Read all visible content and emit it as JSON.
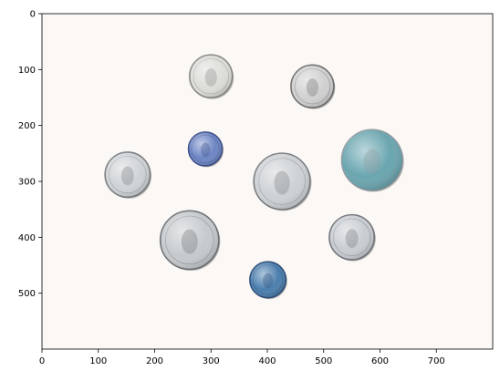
{
  "figure": {
    "axes": {
      "x": {
        "range": [
          0,
          800
        ],
        "ticks": [
          0,
          100,
          200,
          300,
          400,
          500,
          600,
          700
        ]
      },
      "y": {
        "range": [
          600,
          0
        ],
        "ticks": [
          0,
          100,
          200,
          300,
          400,
          500
        ]
      }
    },
    "background_color": "#fbf8f5",
    "subject": "coins",
    "coins": [
      {
        "name": "coin-silver-top",
        "x": 300,
        "y": 112,
        "r": 38,
        "fill": "#dcdcd8",
        "edge": "#8a8a86"
      },
      {
        "name": "coin-silver-top-right",
        "x": 480,
        "y": 130,
        "r": 38,
        "fill": "#d0d0d0",
        "edge": "#707070"
      },
      {
        "name": "coin-blue-small",
        "x": 290,
        "y": 242,
        "r": 30,
        "fill": "#6d86c4",
        "edge": "#3f4f8a"
      },
      {
        "name": "coin-bimetal-right",
        "x": 586,
        "y": 262,
        "r": 54,
        "fill": "#6aa6b0",
        "edge": "#8f9ba0"
      },
      {
        "name": "coin-silver-left",
        "x": 152,
        "y": 288,
        "r": 40,
        "fill": "#cfd3d6",
        "edge": "#7b7f82"
      },
      {
        "name": "coin-silver-center",
        "x": 426,
        "y": 300,
        "r": 50,
        "fill": "#cdd1d4",
        "edge": "#7a7e82"
      },
      {
        "name": "coin-silver-large-left",
        "x": 262,
        "y": 405,
        "r": 52,
        "fill": "#c6cacd",
        "edge": "#6f7376"
      },
      {
        "name": "coin-silver-right-lower",
        "x": 550,
        "y": 400,
        "r": 40,
        "fill": "#c9cdd2",
        "edge": "#73777c"
      },
      {
        "name": "coin-blue-bottom",
        "x": 401,
        "y": 476,
        "r": 32,
        "fill": "#4c7fae",
        "edge": "#2e4f78"
      }
    ]
  }
}
